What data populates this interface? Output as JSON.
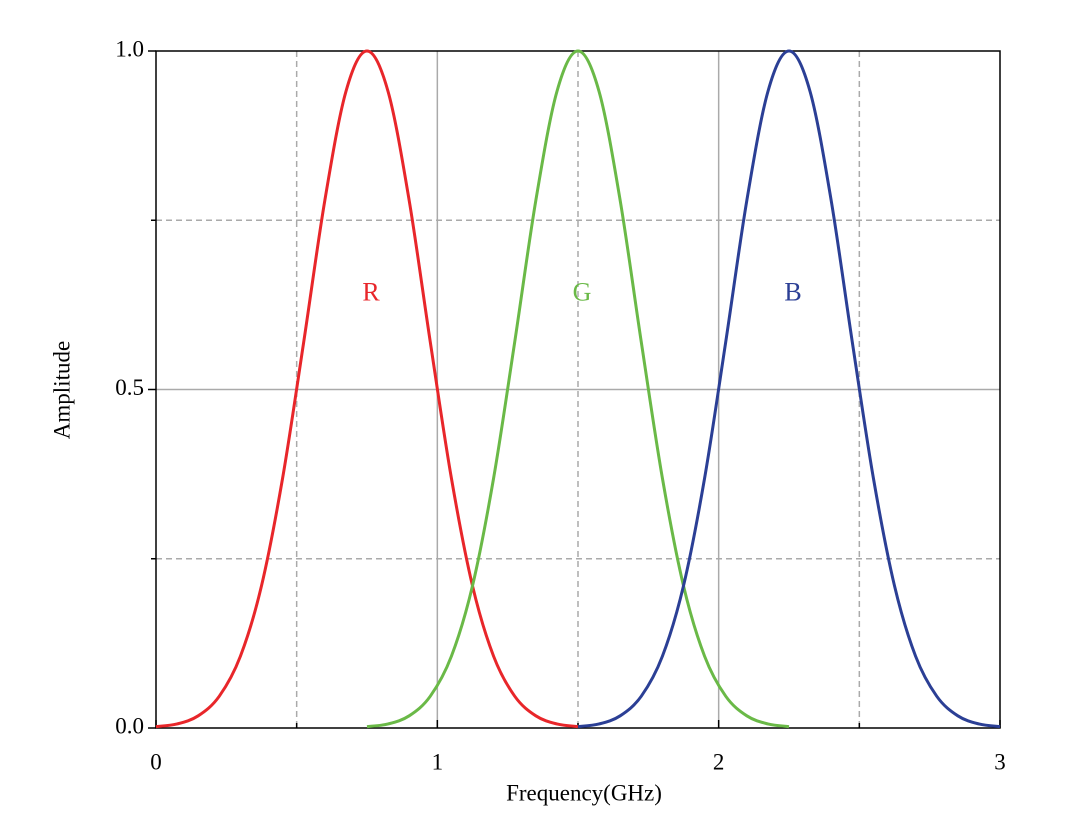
{
  "chart_data": {
    "type": "line",
    "x_label": "Frequency(GHz)",
    "y_label": "Amplitude",
    "xlim": [
      0,
      3
    ],
    "xticks": [
      0,
      1,
      2,
      3
    ],
    "xminor": [
      0.5,
      1.5,
      2.5
    ],
    "ylim": [
      0,
      1
    ],
    "yticks": [
      {
        "value": 0,
        "label": "0.0"
      },
      {
        "value": 0.5,
        "label": "0.5"
      },
      {
        "value": 1,
        "label": "1.0"
      }
    ],
    "yminor": [
      0.25,
      0.75
    ],
    "grid": true,
    "series": [
      {
        "name": "R",
        "color": "#e8262a",
        "x": [
          0,
          0.075,
          0.15,
          0.225,
          0.3,
          0.375,
          0.45,
          0.525,
          0.6,
          0.675,
          0.75,
          0.825,
          0.9,
          0.975,
          1.05,
          1.125,
          1.2,
          1.275,
          1.35,
          1.425,
          1.5
        ],
        "values": [
          0.002,
          0.006,
          0.018,
          0.047,
          0.106,
          0.21,
          0.369,
          0.57,
          0.779,
          0.94,
          1,
          0.94,
          0.779,
          0.57,
          0.369,
          0.21,
          0.106,
          0.047,
          0.018,
          0.006,
          0.002
        ]
      },
      {
        "name": "G",
        "color": "#6ab947",
        "x": [
          0.75,
          0.825,
          0.9,
          0.975,
          1.05,
          1.125,
          1.2,
          1.275,
          1.35,
          1.425,
          1.5,
          1.575,
          1.65,
          1.725,
          1.8,
          1.875,
          1.95,
          2.025,
          2.1,
          2.175,
          2.25
        ],
        "values": [
          0.002,
          0.006,
          0.018,
          0.047,
          0.106,
          0.21,
          0.369,
          0.57,
          0.779,
          0.94,
          1,
          0.94,
          0.779,
          0.57,
          0.369,
          0.21,
          0.106,
          0.047,
          0.018,
          0.006,
          0.002
        ]
      },
      {
        "name": "B",
        "color": "#2b3f95",
        "x": [
          1.5,
          1.575,
          1.65,
          1.725,
          1.8,
          1.875,
          1.95,
          2.025,
          2.1,
          2.175,
          2.25,
          2.325,
          2.4,
          2.475,
          2.55,
          2.625,
          2.7,
          2.775,
          2.85,
          2.925,
          3
        ],
        "values": [
          0.002,
          0.006,
          0.018,
          0.047,
          0.106,
          0.21,
          0.369,
          0.57,
          0.779,
          0.94,
          1,
          0.94,
          0.779,
          0.57,
          0.369,
          0.21,
          0.106,
          0.047,
          0.018,
          0.006,
          0.002
        ]
      }
    ]
  }
}
